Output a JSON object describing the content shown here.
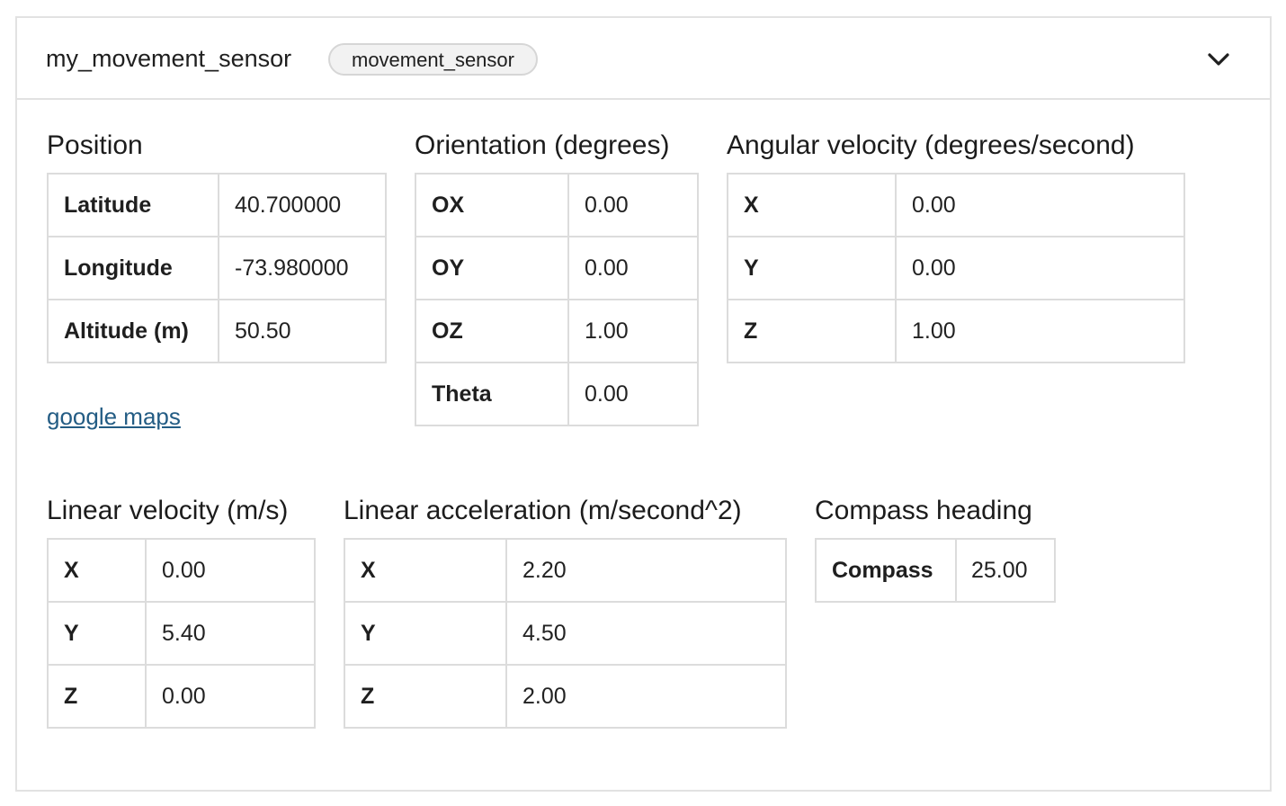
{
  "header": {
    "title": "my_movement_sensor",
    "badge": "movement_sensor",
    "chevron_icon": "chevron-down-icon"
  },
  "position": {
    "title": "Position",
    "rows": [
      {
        "label": "Latitude",
        "value": "40.700000"
      },
      {
        "label": "Longitude",
        "value": "-73.980000"
      },
      {
        "label": "Altitude (m)",
        "value": "50.50"
      }
    ],
    "link": "google maps"
  },
  "orientation": {
    "title": "Orientation (degrees)",
    "rows": [
      {
        "label": "OX",
        "value": "0.00"
      },
      {
        "label": "OY",
        "value": "0.00"
      },
      {
        "label": "OZ",
        "value": "1.00"
      },
      {
        "label": "Theta",
        "value": "0.00"
      }
    ]
  },
  "angular_velocity": {
    "title": "Angular velocity (degrees/second)",
    "rows": [
      {
        "label": "X",
        "value": "0.00"
      },
      {
        "label": "Y",
        "value": "0.00"
      },
      {
        "label": "Z",
        "value": "1.00"
      }
    ]
  },
  "linear_velocity": {
    "title": "Linear velocity (m/s)",
    "rows": [
      {
        "label": "X",
        "value": "0.00"
      },
      {
        "label": "Y",
        "value": "5.40"
      },
      {
        "label": "Z",
        "value": "0.00"
      }
    ]
  },
  "linear_acceleration": {
    "title": "Linear acceleration (m/second^2)",
    "rows": [
      {
        "label": "X",
        "value": "2.20"
      },
      {
        "label": "Y",
        "value": "4.50"
      },
      {
        "label": "Z",
        "value": "2.00"
      }
    ]
  },
  "compass": {
    "title": "Compass heading",
    "rows": [
      {
        "label": "Compass",
        "value": "25.00"
      }
    ]
  },
  "colors": {
    "border": "#dcdcdc",
    "link": "#235c84",
    "badge_bg": "#f2f2f2"
  }
}
